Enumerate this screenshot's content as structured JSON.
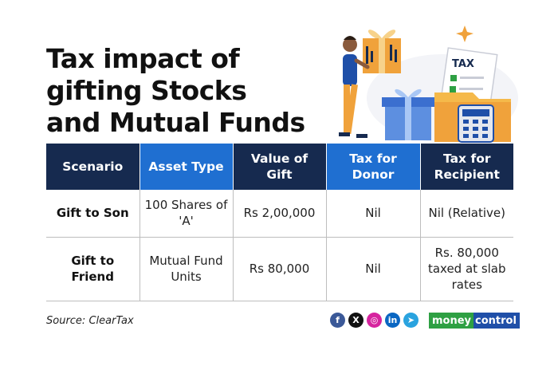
{
  "title": {
    "line1": "Tax impact of",
    "line2": "gifting Stocks",
    "line3": "and Mutual Funds"
  },
  "illustration": {
    "tax_doc_label": "TAX",
    "description_icon": "person-with-gifts-tax-documents-calculator"
  },
  "table": {
    "headers": [
      "Scenario",
      "Asset Type",
      "Value of Gift",
      "Tax for Donor",
      "Tax for Recipient"
    ],
    "rows": [
      {
        "scenario": "Gift to Son",
        "asset_type": "100 Shares of 'A'",
        "value": "Rs 2,00,000",
        "tax_donor": "Nil",
        "tax_recipient": "Nil (Relative)"
      },
      {
        "scenario": "Gift to Friend",
        "asset_type": "Mutual Fund Units",
        "value": "Rs 80,000",
        "tax_donor": "Nil",
        "tax_recipient": "Rs. 80,000 taxed at slab rates"
      }
    ]
  },
  "footer": {
    "source": "Source: ClearTax",
    "social_icons": [
      {
        "name": "facebook-icon",
        "glyph": "f",
        "color": "#3b5998"
      },
      {
        "name": "x-icon",
        "glyph": "X",
        "color": "#111111"
      },
      {
        "name": "instagram-icon",
        "glyph": "◎",
        "color": "#d6249f"
      },
      {
        "name": "linkedin-icon",
        "glyph": "in",
        "color": "#0a66c2"
      },
      {
        "name": "telegram-icon",
        "glyph": "➤",
        "color": "#2aa3df"
      }
    ],
    "brand_part1": "money",
    "brand_part2": "control"
  },
  "colors": {
    "header_dark": "#162a4f",
    "header_blue": "#1f6fd1",
    "brand_green": "#2ea043",
    "brand_blue": "#1f4fa8"
  }
}
